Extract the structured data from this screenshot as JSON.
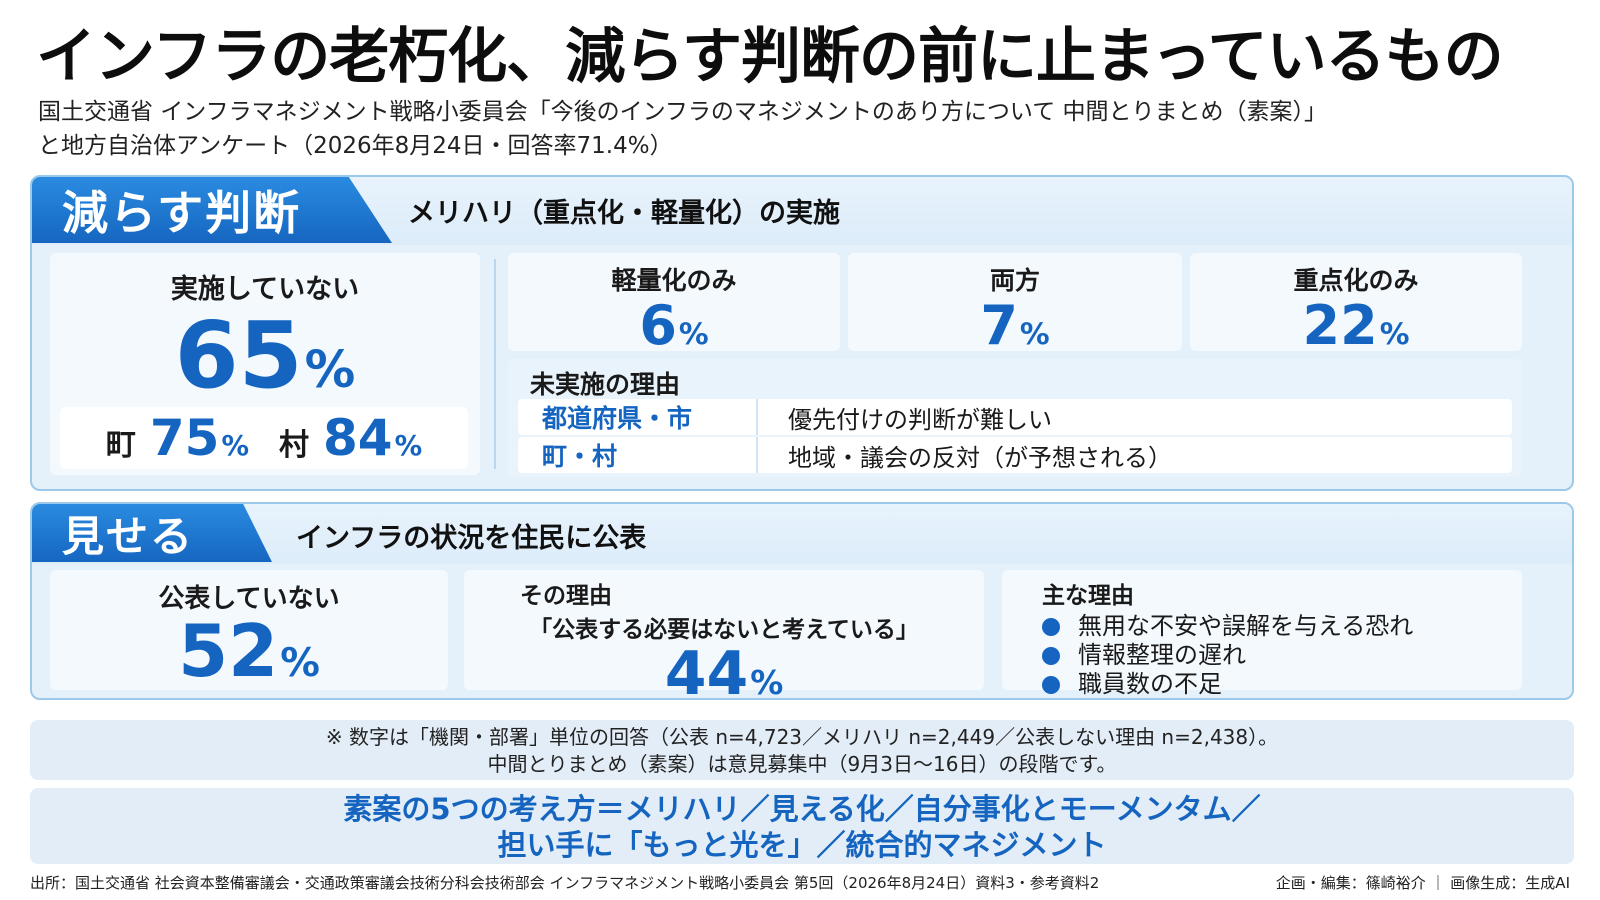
{
  "title": "インフラの老朽化、減らす判断の前に止まっているもの",
  "subtitle": {
    "line1": "国土交通省 インフラマネジメント戦略小委員会「今後のインフラのマネジメントのあり方について 中間とりまとめ（素案）」",
    "line2": "と地方自治体アンケート（2026年8月24日・回答率71.4%）"
  },
  "reduce": {
    "tag": "減らす判断",
    "heading": "メリハリ（重点化・軽量化）の実施",
    "not_done": {
      "label": "実施していない",
      "value": "65",
      "unit": "%"
    },
    "breakdown": [
      {
        "label": "町",
        "value": "75",
        "unit": "%"
      },
      {
        "label": "村",
        "value": "84",
        "unit": "%"
      }
    ],
    "options": [
      {
        "label": "軽量化のみ",
        "value": "6",
        "unit": "%"
      },
      {
        "label": "両方",
        "value": "7",
        "unit": "%"
      },
      {
        "label": "重点化のみ",
        "value": "22",
        "unit": "%"
      }
    ],
    "reasons": {
      "title": "未実施の理由",
      "rows": [
        {
          "key": "都道府県・市",
          "text": "優先付けの判断が難しい"
        },
        {
          "key": "町・村",
          "text": "地域・議会の反対（が予想される）"
        }
      ]
    }
  },
  "show": {
    "tag": "見せる",
    "heading": "インフラの状況を住民に公表",
    "not_public": {
      "label": "公表していない",
      "value": "52",
      "unit": "%"
    },
    "reason": {
      "label": "その理由",
      "quote": "「公表する必要はないと考えている」",
      "value": "44",
      "unit": "%"
    },
    "main_reasons": {
      "title": "主な理由",
      "items": [
        "無用な不安や誤解を与える恐れ",
        "情報整理の遅れ",
        "職員数の不足"
      ]
    }
  },
  "note": {
    "line1": "※ 数字は「機関・部署」単位の回答（公表 n=4,723／メリハリ n=2,449／公表しない理由 n=2,438）。",
    "line2": "中間とりまとめ（素案）は意見募集中（9月3日〜16日）の段階です。"
  },
  "concept": {
    "line1": "素案の5つの考え方＝メリハリ／見える化／自分事化とモーメンタム／",
    "line2": "担い手に「もっと光を」／統合的マネジメント"
  },
  "footer": {
    "source": "出所：国土交通省 社会資本整備審議会・交通政策審議会技術分科会技術部会 インフラマネジメント戦略小委員会 第5回（2026年8月24日）資料3・参考資料2",
    "credit": "企画・編集：篠崎裕介 ｜ 画像生成：生成AI"
  },
  "colors": {
    "accent": "#1565c0",
    "panel": "#e4f1fb",
    "tag": "#1e78d6"
  }
}
